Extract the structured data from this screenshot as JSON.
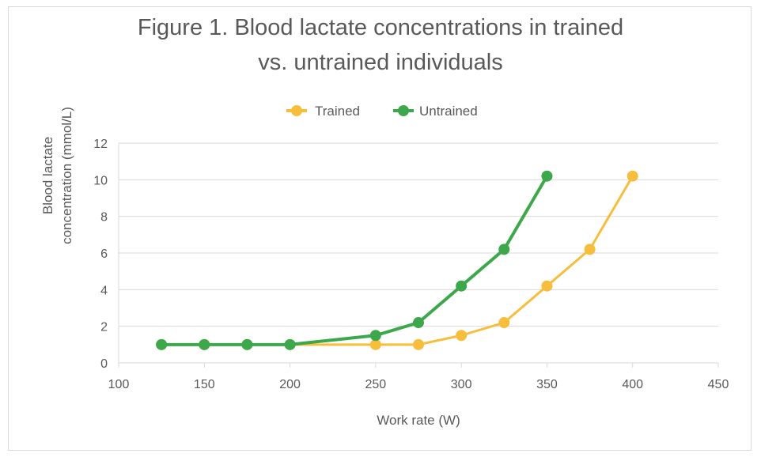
{
  "chart_data": {
    "type": "line",
    "title": [
      "Figure 1. Blood lactate concentrations in trained",
      "vs. untrained individuals"
    ],
    "xlabel": "Work rate (W)",
    "ylabel": [
      "Blood lactate",
      "concentration (mmol/L)"
    ],
    "xlim": [
      100,
      450
    ],
    "ylim": [
      0,
      12
    ],
    "xticks": [
      100,
      150,
      200,
      250,
      300,
      350,
      400,
      450
    ],
    "yticks": [
      0,
      2,
      4,
      6,
      8,
      10,
      12
    ],
    "grid": "horizontal",
    "legend_position": "top",
    "series": [
      {
        "name": "Trained",
        "color": "#F6BE3C",
        "points": [
          [
            125,
            1
          ],
          [
            150,
            1
          ],
          [
            175,
            1
          ],
          [
            200,
            1
          ],
          [
            250,
            1
          ],
          [
            275,
            1
          ],
          [
            300,
            1.5
          ],
          [
            325,
            2.2
          ],
          [
            350,
            4.2
          ],
          [
            375,
            6.2
          ],
          [
            400,
            10.2
          ]
        ]
      },
      {
        "name": "Untrained",
        "color": "#3DA74B",
        "points": [
          [
            125,
            1
          ],
          [
            150,
            1
          ],
          [
            175,
            1
          ],
          [
            200,
            1
          ],
          [
            250,
            1.5
          ],
          [
            275,
            2.2
          ],
          [
            300,
            4.2
          ],
          [
            325,
            6.2
          ],
          [
            350,
            10.2
          ]
        ]
      }
    ]
  }
}
